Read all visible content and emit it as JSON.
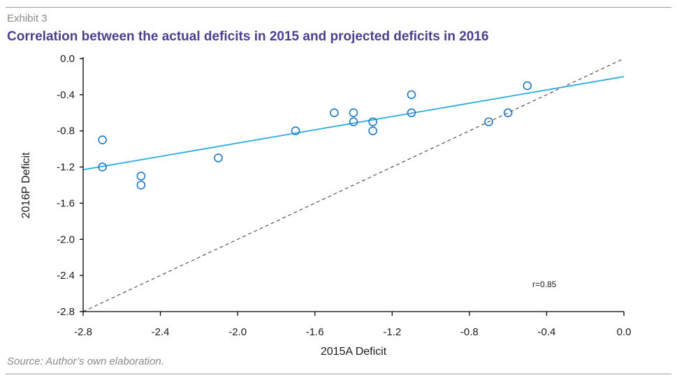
{
  "header": {
    "exhibit": "Exhibit 3",
    "title": "Correlation between the actual deficits in 2015 and projected deficits in 2016"
  },
  "footer": {
    "source": "Source: Author’s own elaboration."
  },
  "chart_data": {
    "type": "scatter",
    "title": "Correlation between the actual deficits in 2015 and projected deficits in 2016",
    "xlabel": "2015A Deficit",
    "ylabel": "2016P Deficit",
    "xlim": [
      -2.8,
      0.0
    ],
    "ylim": [
      -2.8,
      0.0
    ],
    "xticks": [
      -2.8,
      -2.4,
      -2.0,
      -1.6,
      -1.2,
      -0.8,
      -0.4,
      0.0
    ],
    "yticks": [
      0.0,
      -0.4,
      -0.8,
      -1.2,
      -1.6,
      -2.0,
      -2.4,
      -2.8
    ],
    "xtick_labels": [
      "-2.8",
      "-2.4",
      "-2.0",
      "-1.6",
      "-1.2",
      "-0.8",
      "-0.4",
      "0.0"
    ],
    "ytick_labels": [
      "0.0",
      "-0.4",
      "-0.8",
      "-1.2",
      "-1.6",
      "-2.0",
      "-2.4",
      "-2.8"
    ],
    "grid": false,
    "points": [
      {
        "x": -2.7,
        "y": -0.9
      },
      {
        "x": -2.7,
        "y": -1.2
      },
      {
        "x": -2.5,
        "y": -1.3
      },
      {
        "x": -2.5,
        "y": -1.4
      },
      {
        "x": -2.1,
        "y": -1.1
      },
      {
        "x": -1.7,
        "y": -0.8
      },
      {
        "x": -1.5,
        "y": -0.6
      },
      {
        "x": -1.4,
        "y": -0.6
      },
      {
        "x": -1.4,
        "y": -0.7
      },
      {
        "x": -1.3,
        "y": -0.7
      },
      {
        "x": -1.3,
        "y": -0.8
      },
      {
        "x": -1.1,
        "y": -0.4
      },
      {
        "x": -1.1,
        "y": -0.6
      },
      {
        "x": -0.7,
        "y": -0.7
      },
      {
        "x": -0.6,
        "y": -0.6
      },
      {
        "x": -0.5,
        "y": -0.3
      }
    ],
    "trend_line": {
      "x": [
        -2.8,
        0.0
      ],
      "y": [
        -1.23,
        -0.2
      ]
    },
    "reference_line": {
      "x": [
        -2.8,
        0.0
      ],
      "y": [
        -2.8,
        0.0
      ],
      "style": "dashed"
    },
    "annotation": "r=0.85",
    "colors": {
      "points": "#1f77c4",
      "trend": "#29abe2",
      "reference": "#333333",
      "axis": "#000000"
    }
  }
}
